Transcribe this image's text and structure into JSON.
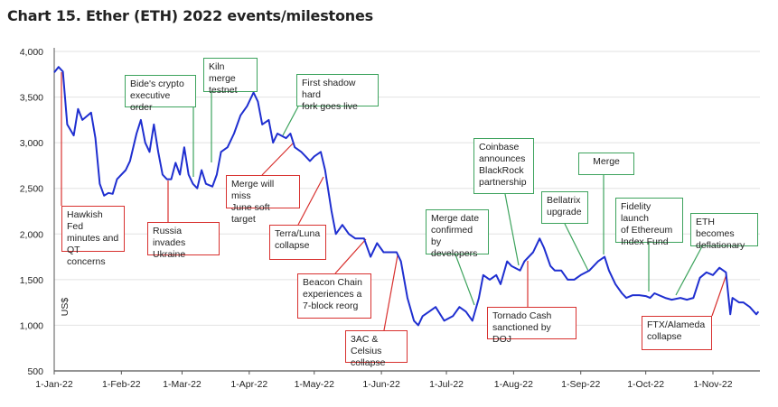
{
  "title": "Chart 15. Ether (ETH) 2022 events/milestones",
  "chart_data": {
    "type": "line",
    "title": "Chart 15. Ether (ETH) 2022 events/milestones",
    "xlabel": "",
    "ylabel": "US$",
    "ylim": [
      500,
      4000
    ],
    "yticks": [
      "500",
      "1,000",
      "1,500",
      "2,000",
      "2,500",
      "3,000",
      "3,500",
      "4,000"
    ],
    "xticks": [
      "1-Jan-22",
      "1-Feb-22",
      "1-Mar-22",
      "1-Apr-22",
      "1-May-22",
      "1-Jun-22",
      "1-Jul-22",
      "1-Aug-22",
      "1-Sep-22",
      "1-Oct-22",
      "1-Nov-22"
    ],
    "grid": "horizontal",
    "colors": {
      "line": "#1f2fd0",
      "negative_event": "#d8312f",
      "positive_event": "#3da35d"
    },
    "series": [
      {
        "x": [
          "2022-01-01",
          "2022-01-03",
          "2022-01-05",
          "2022-01-07",
          "2022-01-10",
          "2022-01-12",
          "2022-01-14",
          "2022-01-18",
          "2022-01-20",
          "2022-01-22",
          "2022-01-24",
          "2022-01-26",
          "2022-01-28",
          "2022-01-30",
          "2022-02-03",
          "2022-02-05",
          "2022-02-08",
          "2022-02-10",
          "2022-02-12",
          "2022-02-14",
          "2022-02-16",
          "2022-02-18",
          "2022-02-20",
          "2022-02-22",
          "2022-02-24",
          "2022-02-26",
          "2022-02-28",
          "2022-03-02",
          "2022-03-04",
          "2022-03-06",
          "2022-03-08",
          "2022-03-10",
          "2022-03-12",
          "2022-03-15",
          "2022-03-17",
          "2022-03-19",
          "2022-03-22",
          "2022-03-25",
          "2022-03-28",
          "2022-03-31",
          "2022-04-03",
          "2022-04-05",
          "2022-04-07",
          "2022-04-10",
          "2022-04-12",
          "2022-04-14",
          "2022-04-18",
          "2022-04-20",
          "2022-04-22",
          "2022-04-25",
          "2022-04-27",
          "2022-04-29",
          "2022-05-01",
          "2022-05-04",
          "2022-05-06",
          "2022-05-09",
          "2022-05-11",
          "2022-05-14",
          "2022-05-17",
          "2022-05-20",
          "2022-05-24",
          "2022-05-27",
          "2022-05-30",
          "2022-06-02",
          "2022-06-05",
          "2022-06-08",
          "2022-06-10",
          "2022-06-13",
          "2022-06-16",
          "2022-06-18",
          "2022-06-20",
          "2022-06-23",
          "2022-06-26",
          "2022-06-30",
          "2022-07-04",
          "2022-07-07",
          "2022-07-10",
          "2022-07-13",
          "2022-07-16",
          "2022-07-18",
          "2022-07-21",
          "2022-07-24",
          "2022-07-26",
          "2022-07-29",
          "2022-07-31",
          "2022-08-04",
          "2022-08-06",
          "2022-08-10",
          "2022-08-13",
          "2022-08-15",
          "2022-08-18",
          "2022-08-20",
          "2022-08-23",
          "2022-08-26",
          "2022-08-29",
          "2022-09-01",
          "2022-09-05",
          "2022-09-09",
          "2022-09-12",
          "2022-09-14",
          "2022-09-17",
          "2022-09-20",
          "2022-09-22",
          "2022-09-25",
          "2022-09-28",
          "2022-10-01",
          "2022-10-03",
          "2022-10-05",
          "2022-10-10",
          "2022-10-13",
          "2022-10-17",
          "2022-10-20",
          "2022-10-23",
          "2022-10-26",
          "2022-10-29",
          "2022-11-01",
          "2022-11-04",
          "2022-11-07",
          "2022-11-09",
          "2022-11-10",
          "2022-11-13",
          "2022-11-15",
          "2022-11-18",
          "2022-11-21",
          "2022-11-22"
        ],
        "y": [
          3770,
          3830,
          3780,
          3200,
          3080,
          3370,
          3250,
          3330,
          3050,
          2550,
          2420,
          2450,
          2440,
          2600,
          2700,
          2800,
          3100,
          3250,
          3000,
          2900,
          3200,
          2900,
          2650,
          2600,
          2600,
          2780,
          2650,
          2950,
          2650,
          2550,
          2500,
          2700,
          2550,
          2520,
          2650,
          2900,
          2950,
          3100,
          3300,
          3400,
          3550,
          3450,
          3200,
          3250,
          3000,
          3100,
          3050,
          3100,
          2950,
          2900,
          2850,
          2800,
          2850,
          2900,
          2700,
          2250,
          2000,
          2100,
          2000,
          1950,
          1950,
          1750,
          1900,
          1800,
          1800,
          1800,
          1700,
          1300,
          1050,
          1000,
          1100,
          1150,
          1200,
          1050,
          1100,
          1200,
          1150,
          1050,
          1300,
          1550,
          1500,
          1550,
          1450,
          1700,
          1650,
          1600,
          1700,
          1800,
          1950,
          1850,
          1650,
          1600,
          1600,
          1500,
          1500,
          1550,
          1600,
          1700,
          1750,
          1600,
          1450,
          1350,
          1300,
          1330,
          1330,
          1320,
          1300,
          1350,
          1300,
          1280,
          1300,
          1280,
          1300,
          1520,
          1580,
          1550,
          1630,
          1580,
          1120,
          1300,
          1250,
          1250,
          1200,
          1120,
          1150
        ]
      }
    ],
    "annotations": [
      {
        "text": "Hawkish Fed\nminutes and\nQT concerns",
        "type": "negative"
      },
      {
        "text": "Bide's crypto\nexecutive order",
        "type": "positive"
      },
      {
        "text": "Kiln merge\ntestnet",
        "type": "positive"
      },
      {
        "text": "First shadow hard\nfork goes live",
        "type": "positive"
      },
      {
        "text": "Merge will miss\nJune soft target",
        "type": "negative"
      },
      {
        "text": "Russia invades\nUkraine",
        "type": "negative"
      },
      {
        "text": "Terra/Luna\ncollapse",
        "type": "negative"
      },
      {
        "text": "Beacon Chain\nexperiences a\n7-block reorg",
        "type": "negative"
      },
      {
        "text": "3AC & Celsius\ncollapse",
        "type": "negative"
      },
      {
        "text": "Merge date\nconfirmed by\ndevelopers",
        "type": "positive"
      },
      {
        "text": "Coinbase\nannounces\nBlackRock\npartnership",
        "type": "positive"
      },
      {
        "text": "Tornado Cash\nsanctioned by DOJ",
        "type": "negative"
      },
      {
        "text": "Bellatrix\nupgrade",
        "type": "positive"
      },
      {
        "text": "Merge",
        "type": "positive"
      },
      {
        "text": "Fidelity launch\nof Ethereum\nIndex Fund",
        "type": "positive"
      },
      {
        "text": "ETH becomes\ndeflationary",
        "type": "positive"
      },
      {
        "text": "FTX/Alameda\ncollapse",
        "type": "negative"
      }
    ]
  }
}
